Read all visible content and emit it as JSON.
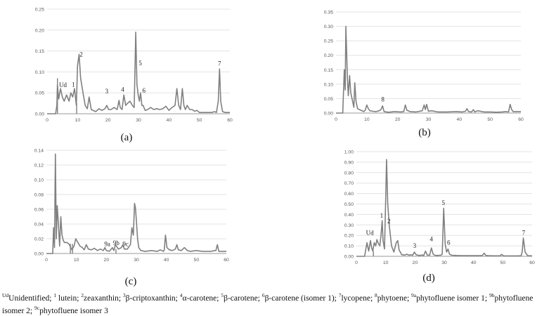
{
  "chart_data": [
    {
      "type": "line",
      "panel_label": "(a)",
      "xlim": [
        0,
        60
      ],
      "ylim": [
        0,
        0.25
      ],
      "x_ticks": [
        "0",
        "10",
        "20",
        "30",
        "40",
        "50",
        "60"
      ],
      "y_ticks": [
        "0.00",
        "0.05",
        "0.10",
        "0.15",
        "0.20",
        "0.25"
      ],
      "grid": true,
      "series": [
        {
          "color": "#808080",
          "x": [
            0,
            2.8,
            3.2,
            3.4,
            3.8,
            4.4,
            5,
            5.6,
            6.4,
            7.2,
            7.8,
            8.4,
            9,
            9.6,
            10,
            10.5,
            11,
            11.8,
            12.5,
            13.2,
            13.8,
            14.5,
            16,
            17,
            18,
            19,
            19.6,
            20.2,
            21,
            22,
            23,
            23.6,
            24,
            24.6,
            25.2,
            25.8,
            26.4,
            27.2,
            28,
            28.6,
            29.1,
            29.5,
            29.9,
            30.3,
            30.7,
            31.1,
            31.5,
            32.2,
            33,
            34,
            35,
            36,
            37,
            38,
            39,
            40,
            41,
            42,
            42.6,
            43.2,
            43.8,
            44.4,
            44.9,
            45.4,
            46,
            46.8,
            47.6,
            48.4,
            49.2,
            50,
            52,
            54,
            55,
            55.6,
            56.2,
            56.6,
            57,
            57.6,
            58.5,
            60
          ],
          "y": [
            0,
            0,
            0.02,
            0.07,
            0.035,
            0.06,
            0.04,
            0.03,
            0.045,
            0.03,
            0.05,
            0.04,
            0.06,
            0.02,
            0.115,
            0.142,
            0.085,
            0.05,
            0.02,
            0.012,
            0.04,
            0.01,
            0.005,
            0.012,
            0.008,
            0.012,
            0.02,
            0.01,
            0.01,
            0.015,
            0.01,
            0.032,
            0.015,
            0.01,
            0.045,
            0.02,
            0.025,
            0.03,
            0.02,
            0.015,
            0.195,
            0.07,
            0.045,
            0.03,
            0.05,
            0.02,
            0.02,
            0.008,
            0.01,
            0.015,
            0.01,
            0.012,
            0.01,
            0.012,
            0.018,
            0.008,
            0.015,
            0.02,
            0.06,
            0.02,
            0.01,
            0.06,
            0.02,
            0.01,
            0.02,
            0.01,
            0.01,
            0.006,
            0.008,
            0.003,
            0.003,
            0.003,
            0.005,
            0.003,
            0.03,
            0.107,
            0.03,
            0.005,
            0.003,
            0.003
          ]
        }
      ],
      "markers": [
        {
          "x": 3.4,
          "y": 0.085
        },
        {
          "x": 9.7,
          "y": 0.025
        }
      ],
      "peaks": [
        {
          "label": "Ud",
          "x": 5.2,
          "y": 0.0635
        },
        {
          "label": "1",
          "x": 8.6,
          "y": 0.065
        },
        {
          "label": "2",
          "x": 11.2,
          "y": 0.137
        },
        {
          "label": "3",
          "x": 19.6,
          "y": 0.049
        },
        {
          "label": "4",
          "x": 24.8,
          "y": 0.053
        },
        {
          "label": "5",
          "x": 30.6,
          "y": 0.116
        },
        {
          "label": "6",
          "x": 31.8,
          "y": 0.05
        },
        {
          "label": "7",
          "x": 56.6,
          "y": 0.115
        }
      ]
    },
    {
      "type": "line",
      "panel_label": "(b)",
      "xlim": [
        0,
        60
      ],
      "ylim": [
        0,
        0.35
      ],
      "x_ticks": [
        "0",
        "10",
        "20",
        "30",
        "40",
        "50",
        "60"
      ],
      "y_ticks": [
        "0.00",
        "0.05",
        "0.10",
        "0.15",
        "0.20",
        "0.25",
        "0.30",
        "0.35"
      ],
      "grid": true,
      "series": [
        {
          "color": "#808080",
          "x": [
            0,
            2.2,
            2.7,
            3.0,
            3.2,
            3.4,
            3.7,
            4.0,
            4.4,
            4.8,
            5.2,
            5.8,
            6.1,
            6.5,
            7,
            8,
            9,
            9.5,
            10,
            10.5,
            11,
            12,
            13,
            14,
            14.6,
            15.1,
            15.6,
            17,
            19,
            21,
            22,
            22.5,
            23,
            24,
            26,
            28,
            28.6,
            29,
            29.4,
            30,
            31,
            33,
            36,
            39,
            41,
            42,
            42.5,
            43,
            44,
            44.6,
            45,
            46,
            48,
            50,
            52,
            54,
            55,
            56,
            56.5,
            57,
            57.5,
            58,
            60
          ],
          "y": [
            0,
            0,
            0.15,
            0.08,
            0.3,
            0.23,
            0.12,
            0.06,
            0.13,
            0.07,
            0.05,
            0.02,
            0.105,
            0.04,
            0.015,
            0.01,
            0.005,
            0.01,
            0.028,
            0.015,
            0.008,
            0.006,
            0.005,
            0.008,
            0.012,
            0.025,
            0.005,
            0.003,
            0.005,
            0.004,
            0.005,
            0.028,
            0.01,
            0.005,
            0.004,
            0.008,
            0.028,
            0.012,
            0.03,
            0.006,
            0.008,
            0.004,
            0.004,
            0.005,
            0.004,
            0.006,
            0.015,
            0.005,
            0.004,
            0.012,
            0.004,
            0.008,
            0.004,
            0.004,
            0.003,
            0.004,
            0.005,
            0.004,
            0.03,
            0.012,
            0.005,
            0.005,
            0.005
          ]
        }
      ],
      "markers": [],
      "peaks": [
        {
          "label": "8",
          "x": 15.2,
          "y": 0.04
        }
      ]
    },
    {
      "type": "line",
      "panel_label": "(c)",
      "xlim": [
        0,
        60
      ],
      "ylim": [
        0,
        0.14
      ],
      "x_ticks": [
        "0",
        "10",
        "20",
        "30",
        "40",
        "50",
        "60"
      ],
      "y_ticks": [
        "0.00",
        "0.02",
        "0.04",
        "0.06",
        "0.08",
        "0.10",
        "0.12",
        "0.14"
      ],
      "grid": true,
      "series": [
        {
          "color": "#808080",
          "x": [
            0,
            2.1,
            2.4,
            2.7,
            3.0,
            3.3,
            3.6,
            4.0,
            4.4,
            4.8,
            5.2,
            5.6,
            6,
            6.8,
            7.5,
            8.5,
            9.2,
            9.8,
            10.5,
            11.2,
            12,
            12.6,
            13.3,
            14,
            15,
            16,
            17,
            18,
            19,
            19.5,
            20,
            21,
            22,
            22.5,
            23,
            24,
            25,
            25.5,
            26,
            27,
            28,
            28.5,
            29,
            29.4,
            29.7,
            30,
            30.4,
            30.8,
            31.5,
            33,
            35,
            37,
            38,
            39,
            39.3,
            39.7,
            40.2,
            41,
            42,
            43,
            43.5,
            44,
            45,
            46,
            47,
            48,
            50,
            52,
            54,
            55,
            56,
            56.5,
            57,
            57.5,
            58,
            60
          ],
          "y": [
            0,
            0,
            0.035,
            0.008,
            0.135,
            0.02,
            0.065,
            0.04,
            0.01,
            0.05,
            0.025,
            0.018,
            0.015,
            0.015,
            0.013,
            0.005,
            0.01,
            0.02,
            0.015,
            0.01,
            0.008,
            0.005,
            0.012,
            0.006,
            0.005,
            0.007,
            0.004,
            0.006,
            0.004,
            0.008,
            0.004,
            0.003,
            0.008,
            0.004,
            0.012,
            0.006,
            0.008,
            0.012,
            0.006,
            0.006,
            0.012,
            0.035,
            0.025,
            0.068,
            0.062,
            0.045,
            0.02,
            0.008,
            0.004,
            0.003,
            0.004,
            0.003,
            0.005,
            0.003,
            0.005,
            0.025,
            0.008,
            0.005,
            0.004,
            0.006,
            0.012,
            0.005,
            0.004,
            0.008,
            0.004,
            0.003,
            0.004,
            0.003,
            0.003,
            0.003,
            0.004,
            0.004,
            0.012,
            0.003,
            0.003,
            0.003
          ]
        }
      ],
      "markers": [
        {
          "x": 8.0,
          "y": 0.013
        },
        {
          "x": 8.7,
          "y": 0.013
        },
        {
          "x": 23.2,
          "y": 0.006
        }
      ],
      "peaks": [
        {
          "label": "9a",
          "x": 20.3,
          "y": 0.0098
        },
        {
          "label": "9b",
          "x": 23.3,
          "y": 0.0114
        },
        {
          "label": "9c",
          "x": 26.4,
          "y": 0.0098
        }
      ]
    },
    {
      "type": "line",
      "panel_label": "(d)",
      "xlim": [
        0,
        60
      ],
      "ylim": [
        0,
        1.0
      ],
      "x_ticks": [
        "0",
        "10",
        "20",
        "30",
        "40",
        "50",
        "60"
      ],
      "y_ticks": [
        "0.00",
        "0.10",
        "0.20",
        "0.30",
        "0.40",
        "0.50",
        "0.60",
        "0.70",
        "0.80",
        "0.90",
        "1.00"
      ],
      "grid": true,
      "series": [
        {
          "color": "#808080",
          "x": [
            0,
            2.8,
            3.6,
            4.2,
            4.8,
            5.2,
            5.6,
            6.1,
            6.6,
            7.0,
            7.5,
            8.0,
            8.4,
            8.8,
            9.1,
            9.6,
            10.0,
            10.3,
            10.7,
            11.2,
            12,
            12.8,
            13.6,
            14.1,
            14.6,
            15.5,
            16.5,
            17.2,
            18,
            18.6,
            19.2,
            19.8,
            20.4,
            21.5,
            22.5,
            23,
            23.6,
            24.2,
            25,
            25.6,
            26.2,
            26.8,
            27.6,
            28.3,
            28.8,
            29.3,
            29.8,
            30.3,
            30.8,
            31.3,
            31.8,
            32.6,
            34,
            36,
            38,
            40,
            42,
            43,
            43.6,
            44.2,
            45,
            47,
            49,
            49.6,
            50.2,
            52,
            54,
            55,
            55.6,
            56.2,
            56.6,
            57,
            57.6,
            58.5,
            60
          ],
          "y": [
            0,
            0,
            0.13,
            0.05,
            0.15,
            0.08,
            0.05,
            0.13,
            0.1,
            0.16,
            0.12,
            0.1,
            0.2,
            0.34,
            0.15,
            0.07,
            0.55,
            0.925,
            0.5,
            0.3,
            0.1,
            0.04,
            0.13,
            0.15,
            0.06,
            0.015,
            0.012,
            0.02,
            0.01,
            0.015,
            0.01,
            0.04,
            0.015,
            0.008,
            0.012,
            0.008,
            0.05,
            0.012,
            0.01,
            0.08,
            0.02,
            0.01,
            0.008,
            0.01,
            0.01,
            0.02,
            0.46,
            0.12,
            0.04,
            0.07,
            0.02,
            0.01,
            0.008,
            0.007,
            0.006,
            0.006,
            0.006,
            0.008,
            0.03,
            0.008,
            0.006,
            0.005,
            0.005,
            0.018,
            0.005,
            0.004,
            0.004,
            0.004,
            0.005,
            0.004,
            0.04,
            0.175,
            0.04,
            0.006,
            0.004
          ]
        }
      ],
      "markers": [
        {
          "x": 5.8,
          "y": 0.05
        }
      ],
      "peaks": [
        {
          "label": "Ud",
          "x": 4.6,
          "y": 0.205
        },
        {
          "label": "1",
          "x": 8.6,
          "y": 0.37
        },
        {
          "label": "2",
          "x": 11.1,
          "y": 0.315
        },
        {
          "label": "3",
          "x": 19.9,
          "y": 0.08
        },
        {
          "label": "4",
          "x": 25.6,
          "y": 0.145
        },
        {
          "label": "5",
          "x": 29.7,
          "y": 0.49
        },
        {
          "label": "6",
          "x": 31.5,
          "y": 0.11
        },
        {
          "label": "7",
          "x": 57.1,
          "y": 0.205
        }
      ]
    }
  ],
  "caption": {
    "t1_sup": "Ud",
    "t1": "Unidentified; ",
    "t2_sup": "1",
    "t2": " lutein; ",
    "t3_sup": "2",
    "t3": "zeaxanthin; ",
    "t4_sup": "3",
    "t4": "β-criptoxanthin; ",
    "t5_sup": "4",
    "t5": "α-carotene; ",
    "t6_sup": "5",
    "t6": "β-carotene; ",
    "t7_sup": "6",
    "t7": "β-carotene (isomer 1); ",
    "t8_sup": "7",
    "t8": "lycopene; ",
    "t9_sup": "8",
    "t9": "phytoene; ",
    "t10_sup": "9a",
    "t10": "phytofluene isomer 1; ",
    "t11_sup": "9b",
    "t11": "phytofluene isomer 2; ",
    "t12_sup": "9c",
    "t12": "phytofluene isomer 3"
  }
}
